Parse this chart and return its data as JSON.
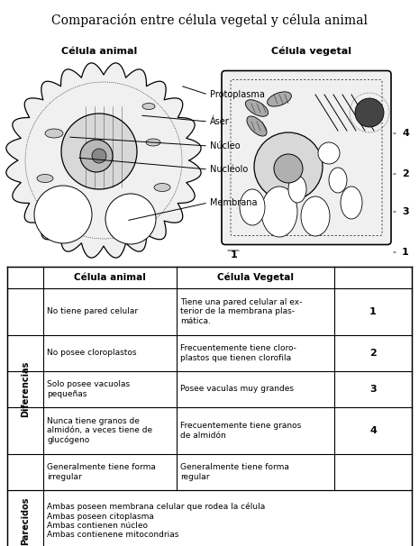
{
  "title": "Comparación entre célula vegetal y célula animal",
  "animal_cell_label": "Célula animal",
  "vegetal_cell_label": "Célula vegetal",
  "annotation_labels": [
    "Protoplasma",
    "Áser",
    "Núcleo",
    "Nucléolo",
    "Membrana"
  ],
  "side_numbers": [
    "1",
    "2",
    "3",
    "4"
  ],
  "table_header": [
    "Célula animal",
    "Célula Vegetal"
  ],
  "diferencias_rows": [
    [
      "No tiene pared celular",
      "Tiene una pared celular al ex-\nterior de la membrana plas-\nmática.",
      "1"
    ],
    [
      "No posee cloroplastos",
      "Frecuentemente tiene cloro-\nplastos que tienen clorofila",
      "2"
    ],
    [
      "Solo posee vacuolas\npequeñas",
      "Posee vaculas muy grandes",
      "3"
    ],
    [
      "Nunca tiene granos de\nalmidón, a veces tiene de\nglucógeno",
      "Frecuentemente tiene granos\nde almidón",
      "4"
    ],
    [
      "Generalmente tiene forma\nirregular",
      "Generalmente tiene forma\nregular",
      ""
    ]
  ],
  "parecidos_text": "Ambas poseen membrana celular que rodea la célula\nAmbas poseen citoplasma\nAmbas contienen núcleo\nAmbas contienene mitocondrias",
  "bg_color": "#ffffff"
}
